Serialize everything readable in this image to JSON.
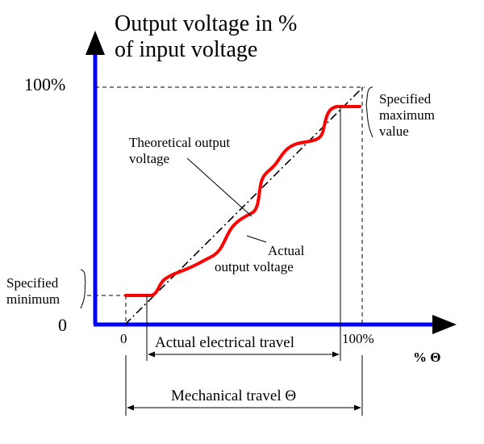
{
  "title_line1": "Output voltage in %",
  "title_line2": "of input voltage",
  "y_axis": {
    "top_label": "100%",
    "origin_label": "0"
  },
  "x_axis": {
    "start_label": "0",
    "end_label": "100%",
    "unit_label": "% Θ"
  },
  "labels": {
    "specified_max_line1": "Specified",
    "specified_max_line2": "maximum",
    "specified_max_line3": "value",
    "specified_min_line1": "Specified",
    "specified_min_line2": "minimum",
    "theoretical_line1": "Theoretical output",
    "theoretical_line2": "voltage",
    "actual_line1": "Actual",
    "actual_line2": "output voltage",
    "actual_travel": "Actual electrical travel",
    "mechanical_travel": "Mechanical travel Θ"
  },
  "colors": {
    "axes": "#0000ff",
    "actual_curve": "#ff0000",
    "lines": "#000000"
  }
}
